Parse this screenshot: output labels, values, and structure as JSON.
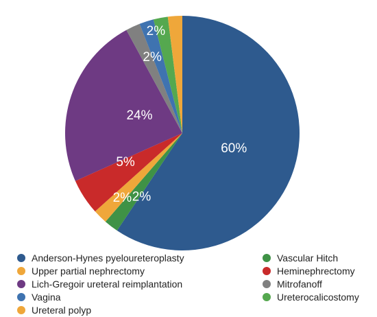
{
  "chart_data": {
    "type": "pie",
    "slices": [
      {
        "name": "Anderson-Hynes pyeloureteroplasty",
        "value": 60,
        "label": "60%",
        "color": "#2e5a8e"
      },
      {
        "name": "Vascular Hitch",
        "value": 2,
        "label": "2%",
        "color": "#3f9246"
      },
      {
        "name": "Upper partial nephrectomy",
        "value": 2,
        "label": "2%",
        "color": "#efa73a"
      },
      {
        "name": "Heminephrectomy",
        "value": 5,
        "label": "5%",
        "color": "#c92a2a"
      },
      {
        "name": "Lich-Gregoir ureteral reimplantation",
        "value": 24,
        "label": "24%",
        "color": "#6e3a83"
      },
      {
        "name": "Mitrofanoff",
        "value": 2,
        "label": "2%",
        "color": "#808080"
      },
      {
        "name": "Vagina",
        "value": 2,
        "label": "2%",
        "color": "#3f73b0"
      },
      {
        "name": "Ureterocalicostomy",
        "value": 2,
        "label": "2%",
        "color": "#55a84f"
      },
      {
        "name": "Ureteral polyp",
        "value": 2,
        "label": "2%",
        "color": "#efa73a"
      }
    ],
    "legend": {
      "left": [
        {
          "label": "Anderson-Hynes pyeloureteroplasty",
          "color": "#2e5a8e"
        },
        {
          "label": "Upper partial nephrectomy",
          "color": "#efa73a"
        },
        {
          "label": "Lich-Gregoir ureteral reimplantation",
          "color": "#6e3a83"
        },
        {
          "label": "Vagina",
          "color": "#3f73b0"
        },
        {
          "label": "Ureteral polyp",
          "color": "#efa73a"
        }
      ],
      "right": [
        {
          "label": "Vascular Hitch",
          "color": "#3f9246"
        },
        {
          "label": "Heminephrectomy",
          "color": "#c92a2a"
        },
        {
          "label": "Mitrofanoff",
          "color": "#808080"
        },
        {
          "label": "Ureterocalicostomy",
          "color": "#55a84f"
        }
      ]
    }
  }
}
